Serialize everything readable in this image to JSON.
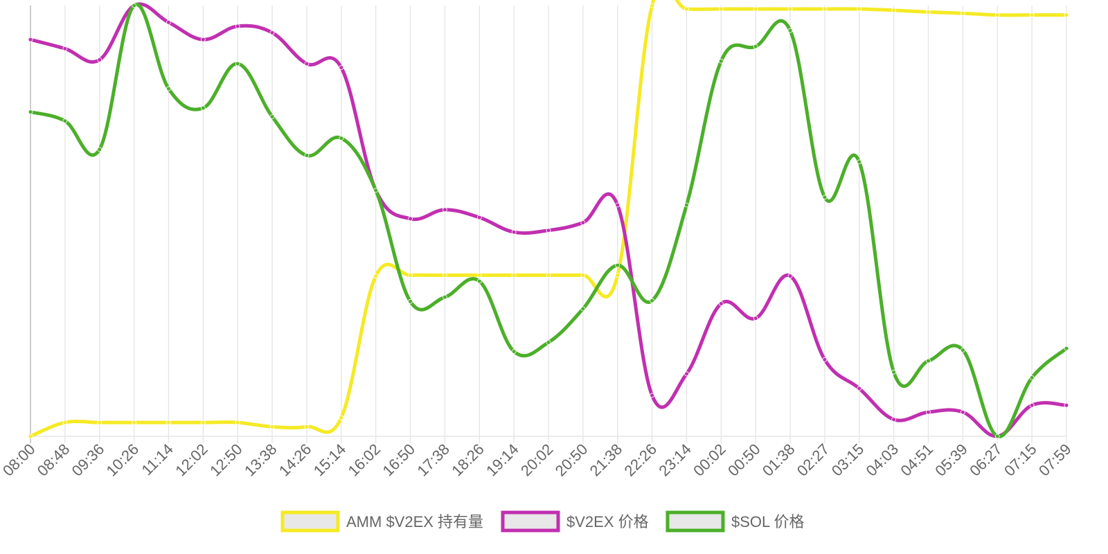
{
  "chart_data": {
    "type": "line",
    "x": [
      "08:00",
      "08:48",
      "09:36",
      "10:26",
      "11:14",
      "12:02",
      "12:50",
      "13:38",
      "14:26",
      "15:14",
      "16:02",
      "16:50",
      "17:38",
      "18:26",
      "19:14",
      "20:02",
      "20:50",
      "21:38",
      "22:26",
      "23:14",
      "00:02",
      "00:50",
      "01:38",
      "02:27",
      "03:15",
      "04:03",
      "04:51",
      "05:39",
      "06:27",
      "07:15",
      "07:59"
    ],
    "ylim": [
      0,
      100
    ],
    "grid": true,
    "legend_position": "bottom",
    "series": [
      {
        "name": "AMM $V2EX 持有量",
        "color": "#f5ea25",
        "values": [
          0,
          3.2,
          3.2,
          3.2,
          3.2,
          3.2,
          3.2,
          2.2,
          2.2,
          4.3,
          37.2,
          37.4,
          37.4,
          37.4,
          37.4,
          37.4,
          37.4,
          37.4,
          100,
          99.2,
          99.2,
          99.2,
          99.2,
          99.2,
          99.2,
          98.9,
          98.5,
          98.2,
          97.8,
          97.8,
          97.8
        ]
      },
      {
        "name": "$V2EX 价格",
        "color": "#c12fb0",
        "values": [
          92.1,
          90,
          87.4,
          100,
          96.1,
          92.1,
          95.2,
          93.7,
          86.5,
          85.6,
          57.1,
          50.5,
          52.6,
          50.8,
          47.4,
          47.8,
          49.6,
          53.7,
          9.5,
          14.5,
          30.8,
          27.4,
          37.2,
          17.8,
          11.1,
          3.9,
          5.6,
          5.6,
          0,
          7.2,
          7.2
        ]
      },
      {
        "name": "$SOL 价格",
        "color": "#4caf2a",
        "values": [
          75.3,
          73.2,
          66.6,
          100,
          80.7,
          76.2,
          86.5,
          74.2,
          65.2,
          69.2,
          57.1,
          31.3,
          32.3,
          36,
          19.7,
          21.8,
          29.6,
          39.7,
          31.5,
          53.7,
          87.1,
          90.5,
          94.2,
          55.5,
          63.7,
          14.9,
          17.5,
          20,
          0,
          13.6,
          20.4
        ]
      }
    ]
  }
}
